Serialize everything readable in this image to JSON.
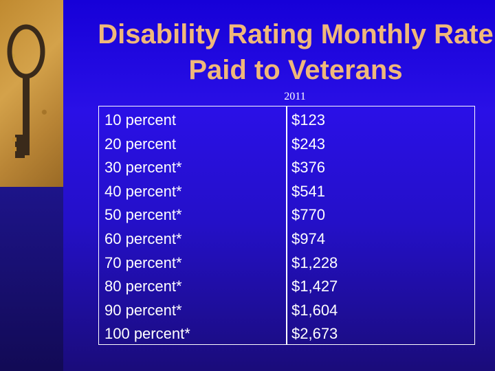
{
  "title": "Disability Rating Monthly Rate Paid to Veterans",
  "subtitle": "2011",
  "colors": {
    "title": "#f0b87a",
    "background": "#2a10e6",
    "text": "#ffffff"
  },
  "key_image": {
    "icon": "key-icon"
  },
  "rows": [
    {
      "rating": "10 percent",
      "amount": "$123"
    },
    {
      "rating": "20 percent",
      "amount": "$243"
    },
    {
      "rating": "30 percent*",
      "amount": "$376"
    },
    {
      "rating": "40 percent*",
      "amount": "$541"
    },
    {
      "rating": "50 percent*",
      "amount": "$770"
    },
    {
      "rating": "60 percent*",
      "amount": "$974"
    },
    {
      "rating": "70 percent*",
      "amount": "$1,228"
    },
    {
      "rating": "80 percent*",
      "amount": "$1,427"
    },
    {
      "rating": "90 percent*",
      "amount": "$1,604"
    },
    {
      "rating": "100 percent*",
      "amount": "$2,673"
    }
  ]
}
